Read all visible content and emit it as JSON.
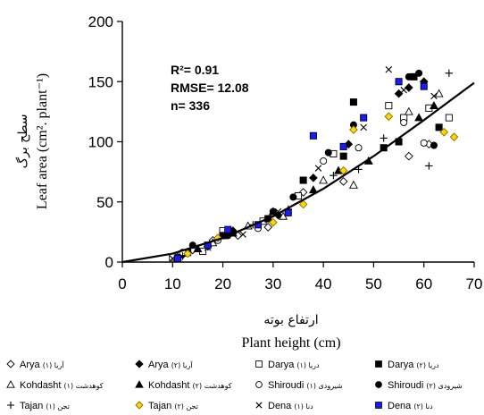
{
  "chart_data": {
    "type": "scatter",
    "xlabel": "Plant height (cm)",
    "xlabel_fa": "ارتفاع بوته",
    "ylabel": "Leaf area (cm². plant⁻¹)",
    "ylabel_fa": "سطح برگ",
    "xlim": [
      0,
      70
    ],
    "ylim": [
      0,
      200
    ],
    "xticks": [
      "0",
      "10",
      "20",
      "30",
      "40",
      "50",
      "60",
      "70"
    ],
    "yticks": [
      "0",
      "50",
      "100",
      "150",
      "200"
    ],
    "grid": false,
    "stats": {
      "r2": "R²= 0.91",
      "rmse": "RMSE= 12.08",
      "n": "n= 336"
    },
    "fit_line": {
      "x": [
        0,
        10,
        20,
        30,
        40,
        50,
        60,
        70
      ],
      "y": [
        0,
        7,
        20,
        38,
        61,
        88,
        118,
        149
      ]
    },
    "legend": [
      {
        "name": "Arya",
        "fa": "(۱) آریا",
        "marker": "diamond-open",
        "color": "#000000"
      },
      {
        "name": "Arya",
        "fa": "(۲) آریا",
        "marker": "diamond",
        "color": "#000000"
      },
      {
        "name": "Darya",
        "fa": "(۱) دریا",
        "marker": "square-open",
        "color": "#000000"
      },
      {
        "name": "Darya",
        "fa": "(۲) دریا",
        "marker": "square",
        "color": "#000000"
      },
      {
        "name": "Kohdasht",
        "fa": "(۱) کوهدشت",
        "marker": "triangle-open",
        "color": "#000000"
      },
      {
        "name": "Kohdasht",
        "fa": "(۲) کوهدشت",
        "marker": "triangle",
        "color": "#000000"
      },
      {
        "name": "Shiroudi",
        "fa": "(۱) شیرودی",
        "marker": "circle-open",
        "color": "#000000"
      },
      {
        "name": "Shiroudi",
        "fa": "(۲) شیرودی",
        "marker": "circle",
        "color": "#000000"
      },
      {
        "name": "Tajan",
        "fa": "(۱) تجن",
        "marker": "plus",
        "color": "#000000"
      },
      {
        "name": "Tajan",
        "fa": "(۲) تجن",
        "marker": "diamond",
        "color": "#ffd700"
      },
      {
        "name": "Dena",
        "fa": "(۱) دنا",
        "marker": "x",
        "color": "#000000"
      },
      {
        "name": "Dena",
        "fa": "(۲) دنا",
        "marker": "square",
        "color": "#1a1aff"
      }
    ],
    "series": [
      {
        "name": "Arya",
        "x": [
          11,
          14,
          18,
          23,
          29,
          36,
          44,
          57,
          61
        ],
        "y": [
          4,
          10,
          18,
          22,
          29,
          58,
          67,
          88,
          98
        ]
      },
      {
        "name": "Arya",
        "x": [
          12,
          17,
          22,
          31,
          38,
          45,
          55,
          57,
          60
        ],
        "y": [
          6,
          13,
          26,
          39,
          70,
          98,
          140,
          145,
          150
        ]
      },
      {
        "name": "Darya",
        "x": [
          10,
          16,
          20,
          28,
          35,
          42,
          53,
          56,
          61,
          65
        ],
        "y": [
          4,
          9,
          26,
          34,
          55,
          90,
          130,
          120,
          128,
          120
        ]
      },
      {
        "name": "Darya",
        "x": [
          13,
          20,
          29,
          36,
          44,
          46,
          52,
          55,
          58,
          63
        ],
        "y": [
          8,
          22,
          36,
          68,
          88,
          133,
          95,
          100,
          154,
          112
        ]
      },
      {
        "name": "Kohdasht",
        "x": [
          11,
          18,
          25,
          32,
          40,
          46,
          57,
          63
        ],
        "y": [
          4,
          16,
          30,
          38,
          68,
          64,
          125,
          140
        ]
      },
      {
        "name": "Kohdasht",
        "x": [
          15,
          22,
          30,
          38,
          43,
          49,
          59,
          62
        ],
        "y": [
          11,
          24,
          42,
          60,
          76,
          84,
          120,
          130
        ]
      },
      {
        "name": "Shiroudi",
        "x": [
          12,
          19,
          27,
          33,
          40,
          47,
          56,
          60
        ],
        "y": [
          8,
          18,
          28,
          41,
          84,
          95,
          116,
          99
        ]
      },
      {
        "name": "Shiroudi",
        "x": [
          14,
          21,
          30,
          34,
          41,
          46,
          57,
          59,
          62
        ],
        "y": [
          14,
          22,
          42,
          54,
          91,
          114,
          154,
          157,
          97
        ]
      },
      {
        "name": "Tajan",
        "x": [
          12,
          20,
          26,
          33,
          42,
          47,
          52,
          61,
          65
        ],
        "y": [
          5,
          22,
          31,
          44,
          72,
          77,
          103,
          80,
          157
        ]
      },
      {
        "name": "Tajan",
        "x": [
          13,
          19,
          30,
          36,
          44,
          46,
          53,
          64,
          66
        ],
        "y": [
          7,
          20,
          33,
          48,
          76,
          110,
          121,
          108,
          104
        ]
      },
      {
        "name": "Dena",
        "x": [
          10,
          17,
          24,
          31,
          39,
          48,
          53,
          56,
          62
        ],
        "y": [
          3,
          12,
          23,
          42,
          78,
          112,
          160,
          143,
          138
        ]
      },
      {
        "name": "Dena",
        "x": [
          11,
          17,
          21,
          27,
          33,
          38,
          44,
          48,
          55,
          60
        ],
        "y": [
          3,
          14,
          27,
          31,
          41,
          105,
          96,
          120,
          150,
          146
        ]
      }
    ]
  }
}
